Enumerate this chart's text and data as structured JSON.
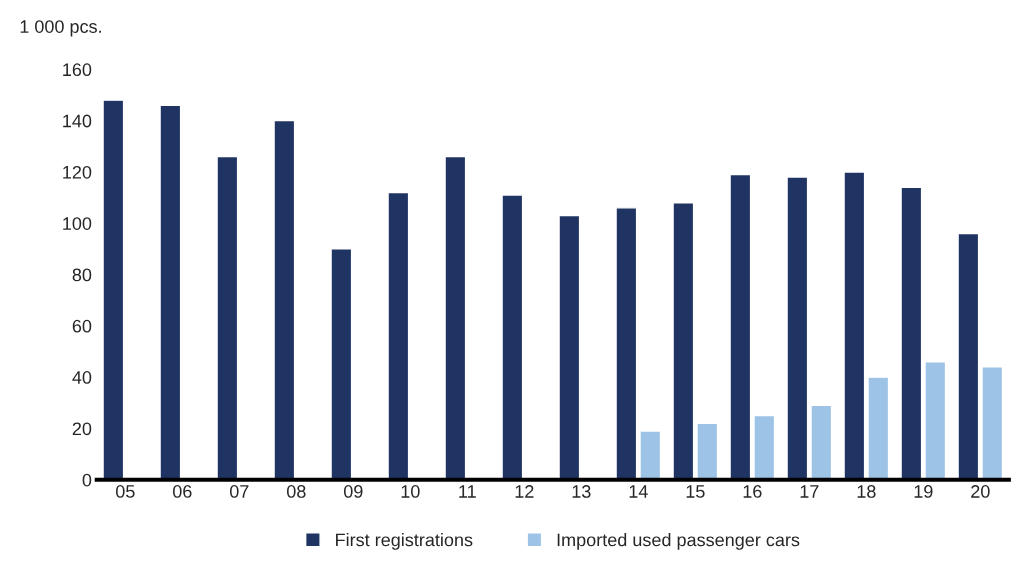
{
  "chart_data": {
    "type": "bar",
    "ylabel": "1 000 pcs.",
    "categories": [
      "05",
      "06",
      "07",
      "08",
      "09",
      "10",
      "11",
      "12",
      "13",
      "14",
      "15",
      "16",
      "17",
      "18",
      "19",
      "20"
    ],
    "series": [
      {
        "name": "First registrations",
        "color": "#1f3463",
        "values": [
          148,
          146,
          126,
          140,
          90,
          112,
          126,
          111,
          103,
          106,
          108,
          119,
          118,
          120,
          114,
          96
        ]
      },
      {
        "name": "Imported used passenger cars",
        "color": "#9dc3e6",
        "values": [
          null,
          null,
          null,
          null,
          null,
          null,
          null,
          null,
          null,
          19,
          22,
          25,
          29,
          40,
          46,
          44
        ]
      }
    ],
    "ylim": [
      0,
      160
    ],
    "yticks": [
      0,
      20,
      40,
      60,
      80,
      100,
      120,
      140,
      160
    ],
    "grid": false,
    "legend": "bottom"
  }
}
